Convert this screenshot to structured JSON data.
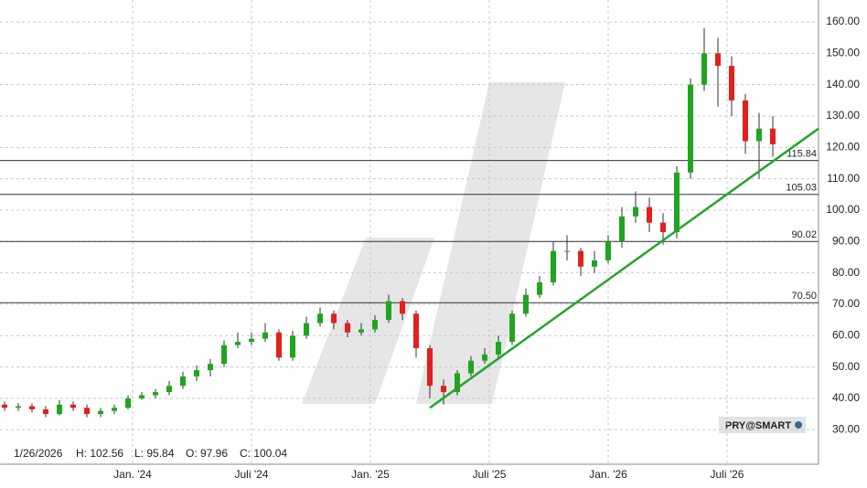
{
  "chart_data": {
    "type": "candlestick",
    "x": [
      1,
      4,
      7,
      10,
      13,
      16,
      19,
      22,
      25,
      28,
      31,
      34,
      37,
      40,
      43,
      46,
      49,
      52,
      55,
      58,
      61,
      64,
      67,
      70,
      73,
      76,
      79,
      82,
      85,
      88,
      91,
      94,
      97,
      100,
      103,
      106,
      109,
      112,
      115,
      118,
      121,
      124,
      127,
      130,
      133,
      136,
      139,
      142,
      145,
      148,
      151,
      154,
      157,
      160,
      163,
      166,
      169
    ],
    "open": [
      38,
      37,
      37.5,
      36.5,
      35,
      38,
      37,
      35,
      36,
      37,
      40,
      41,
      42,
      44,
      47,
      49,
      51,
      57,
      58,
      59,
      61,
      53,
      60,
      64,
      67,
      64,
      61,
      62,
      65,
      71,
      67,
      56,
      44,
      42,
      48,
      52,
      54,
      58,
      67,
      73,
      77,
      87,
      87,
      82,
      84,
      90,
      98,
      101,
      96,
      93,
      112,
      140,
      150,
      146,
      135,
      122,
      126
    ],
    "high": [
      39,
      38.5,
      38.5,
      37.5,
      39.5,
      39,
      38,
      37,
      38,
      41,
      42,
      43,
      45.5,
      48.5,
      50.5,
      52.5,
      58.5,
      61,
      61,
      64,
      62,
      61.5,
      66,
      69,
      68,
      65,
      64,
      66.5,
      73,
      72,
      68,
      57,
      46,
      49,
      53.5,
      56,
      60,
      68,
      75,
      79,
      90,
      92,
      88,
      87,
      92,
      101,
      106,
      104,
      99,
      114,
      142,
      158,
      155,
      149,
      137,
      131,
      130
    ],
    "low": [
      36,
      36,
      35.5,
      34,
      34.5,
      36,
      34,
      34,
      35,
      36.5,
      39.5,
      40,
      41,
      43,
      45.5,
      47,
      50,
      56,
      57,
      58,
      52,
      52,
      59,
      63,
      62,
      59.5,
      60,
      61,
      64,
      65,
      53,
      40,
      38,
      41,
      47,
      51,
      53,
      57,
      66,
      72,
      76,
      84,
      79,
      80,
      83,
      88,
      96,
      93,
      89,
      91,
      110,
      138,
      133,
      130,
      118,
      110,
      117
    ],
    "close": [
      37,
      37.5,
      36.5,
      35,
      38,
      37,
      35,
      36,
      37,
      40,
      41,
      42,
      44,
      47,
      49,
      51,
      57,
      58,
      59,
      61,
      53,
      60,
      64,
      67,
      64,
      61,
      62,
      65,
      71,
      67,
      56,
      44,
      42,
      48,
      52,
      54,
      58,
      67,
      73,
      77,
      87,
      87,
      82,
      84,
      90,
      98,
      101,
      96,
      93,
      112,
      140,
      150,
      146,
      135,
      122,
      126,
      121
    ],
    "up_color": "#1fa51f",
    "down_color": "#e2201c",
    "xlim": [
      0,
      179
    ],
    "xticks": [
      {
        "value": 29,
        "label": "Jan. '24"
      },
      {
        "value": 55,
        "label": "Juli '24"
      },
      {
        "value": 81,
        "label": "Jan. '25"
      },
      {
        "value": 107,
        "label": "Juli '25"
      },
      {
        "value": 133,
        "label": "Jan. '26"
      },
      {
        "value": 159,
        "label": "Juli '26"
      }
    ],
    "ylim": [
      19,
      167
    ],
    "yticks": [
      {
        "value": 30,
        "label": "30.00"
      },
      {
        "value": 40,
        "label": "40.00"
      },
      {
        "value": 50,
        "label": "50.00"
      },
      {
        "value": 60,
        "label": "60.00"
      },
      {
        "value": 70,
        "label": "70.00"
      },
      {
        "value": 80,
        "label": "80.00"
      },
      {
        "value": 90,
        "label": "90.00"
      },
      {
        "value": 100,
        "label": "100.00"
      },
      {
        "value": 110,
        "label": "110.00"
      },
      {
        "value": 120,
        "label": "120.00"
      },
      {
        "value": 130,
        "label": "130.00"
      },
      {
        "value": 140,
        "label": "140.00"
      },
      {
        "value": 150,
        "label": "150.00"
      },
      {
        "value": 160,
        "label": "160.00"
      }
    ],
    "grid": true,
    "levels": [
      115.84,
      105.03,
      90.02,
      {
        "value": 70.5,
        "label": "70.50"
      }
    ],
    "trendline": {
      "x": [
        94,
        179
      ],
      "y": [
        37,
        126
      ],
      "color": "#22a52a"
    },
    "info": [
      "1/26/2026",
      "H: 102.56",
      "L: 95.84",
      "O: 97.96",
      "C: 100.04"
    ],
    "watermark": "PRY@SMART"
  }
}
